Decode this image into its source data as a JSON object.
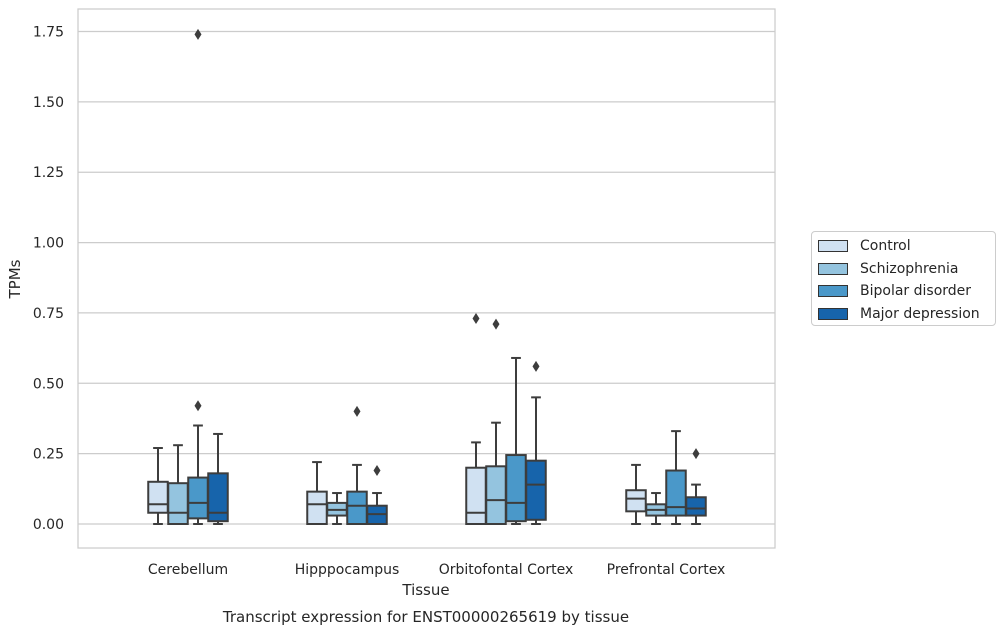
{
  "chart_data": {
    "type": "box",
    "title": "",
    "caption": "Transcript expression for ENST00000265619 by tissue",
    "xlabel": "Tissue",
    "ylabel": "TPMs",
    "ylim": [
      -0.085,
      1.83
    ],
    "yticks": [
      0.0,
      0.25,
      0.5,
      0.75,
      1.0,
      1.25,
      1.5,
      1.75
    ],
    "ytick_labels": [
      "0.00",
      "0.25",
      "0.50",
      "0.75",
      "1.00",
      "1.25",
      "1.50",
      "1.75"
    ],
    "grid": "horizontal",
    "legend_position": "right",
    "categories": [
      "Cerebellum",
      "Hipppocampus",
      "Orbitofontal Cortex",
      "Prefrontal Cortex"
    ],
    "series": [
      {
        "name": "Control",
        "color": "#d0e1f2",
        "boxes": [
          {
            "whisker_low": 0.0,
            "q1": 0.04,
            "median": 0.07,
            "q3": 0.15,
            "whisker_high": 0.27,
            "outliers": []
          },
          {
            "whisker_low": 0.0,
            "q1": 0.0,
            "median": 0.07,
            "q3": 0.115,
            "whisker_high": 0.22,
            "outliers": []
          },
          {
            "whisker_low": 0.0,
            "q1": 0.0,
            "median": 0.04,
            "q3": 0.2,
            "whisker_high": 0.29,
            "outliers": [
              0.73
            ]
          },
          {
            "whisker_low": 0.0,
            "q1": 0.045,
            "median": 0.09,
            "q3": 0.12,
            "whisker_high": 0.21,
            "outliers": []
          }
        ]
      },
      {
        "name": "Schizophrenia",
        "color": "#94c4df",
        "boxes": [
          {
            "whisker_low": 0.0,
            "q1": 0.0,
            "median": 0.04,
            "q3": 0.145,
            "whisker_high": 0.28,
            "outliers": []
          },
          {
            "whisker_low": 0.0,
            "q1": 0.03,
            "median": 0.05,
            "q3": 0.075,
            "whisker_high": 0.11,
            "outliers": []
          },
          {
            "whisker_low": 0.0,
            "q1": 0.0,
            "median": 0.085,
            "q3": 0.205,
            "whisker_high": 0.36,
            "outliers": [
              0.71
            ]
          },
          {
            "whisker_low": 0.0,
            "q1": 0.03,
            "median": 0.05,
            "q3": 0.07,
            "whisker_high": 0.11,
            "outliers": []
          }
        ]
      },
      {
        "name": "Bipolar disorder",
        "color": "#4a98c9",
        "boxes": [
          {
            "whisker_low": 0.0,
            "q1": 0.02,
            "median": 0.075,
            "q3": 0.165,
            "whisker_high": 0.35,
            "outliers": [
              0.42,
              1.74
            ]
          },
          {
            "whisker_low": 0.0,
            "q1": 0.0,
            "median": 0.065,
            "q3": 0.115,
            "whisker_high": 0.21,
            "outliers": [
              0.4
            ]
          },
          {
            "whisker_low": 0.0,
            "q1": 0.01,
            "median": 0.075,
            "q3": 0.245,
            "whisker_high": 0.59,
            "outliers": []
          },
          {
            "whisker_low": 0.0,
            "q1": 0.03,
            "median": 0.06,
            "q3": 0.19,
            "whisker_high": 0.33,
            "outliers": []
          }
        ]
      },
      {
        "name": "Major depression",
        "color": "#1764ab",
        "boxes": [
          {
            "whisker_low": 0.0,
            "q1": 0.01,
            "median": 0.04,
            "q3": 0.18,
            "whisker_high": 0.32,
            "outliers": []
          },
          {
            "whisker_low": 0.0,
            "q1": 0.0,
            "median": 0.035,
            "q3": 0.065,
            "whisker_high": 0.11,
            "outliers": [
              0.19
            ]
          },
          {
            "whisker_low": 0.0,
            "q1": 0.015,
            "median": 0.14,
            "q3": 0.225,
            "whisker_high": 0.45,
            "outliers": [
              0.56
            ]
          },
          {
            "whisker_low": 0.0,
            "q1": 0.03,
            "median": 0.055,
            "q3": 0.095,
            "whisker_high": 0.14,
            "outliers": [
              0.25
            ]
          }
        ]
      }
    ]
  }
}
